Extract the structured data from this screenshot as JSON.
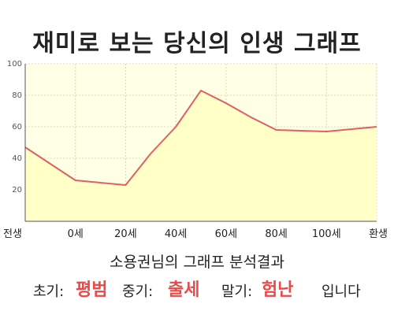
{
  "title": "재미로 보는 당신의 인생 그래프",
  "chart_data": {
    "type": "area",
    "x_tick_labels": [
      "전생",
      "0세",
      "20세",
      "40세",
      "60세",
      "80세",
      "100세",
      "환생"
    ],
    "y_ticks": [
      20,
      40,
      60,
      80,
      100
    ],
    "ylim": [
      0,
      100
    ],
    "series": [
      {
        "points": [
          {
            "x": "전생",
            "y": 47
          },
          {
            "x": "0세",
            "y": 26
          },
          {
            "x": "20세",
            "y": 23
          },
          {
            "x": "30세",
            "y": 43
          },
          {
            "x": "40세",
            "y": 60
          },
          {
            "x": "50세",
            "y": 83
          },
          {
            "x": "60세",
            "y": 75
          },
          {
            "x": "70세",
            "y": 66
          },
          {
            "x": "80세",
            "y": 58
          },
          {
            "x": "100세",
            "y": 57
          },
          {
            "x": "환생",
            "y": 60
          }
        ]
      }
    ],
    "grid": true,
    "colors": {
      "line": "#e06060",
      "fill": "#ffffc8",
      "plot_bg": "#ffffe6",
      "grid": "#d8d8b8"
    }
  },
  "result": {
    "subtitle": "소용권님의 그래프 분석결과",
    "early_label": "초기:",
    "early_value": "평범",
    "middle_label": "중기:",
    "middle_value": "출세",
    "late_label": "말기:",
    "late_value": "험난",
    "suffix": "입니다",
    "value_color": "#e84a4a"
  }
}
